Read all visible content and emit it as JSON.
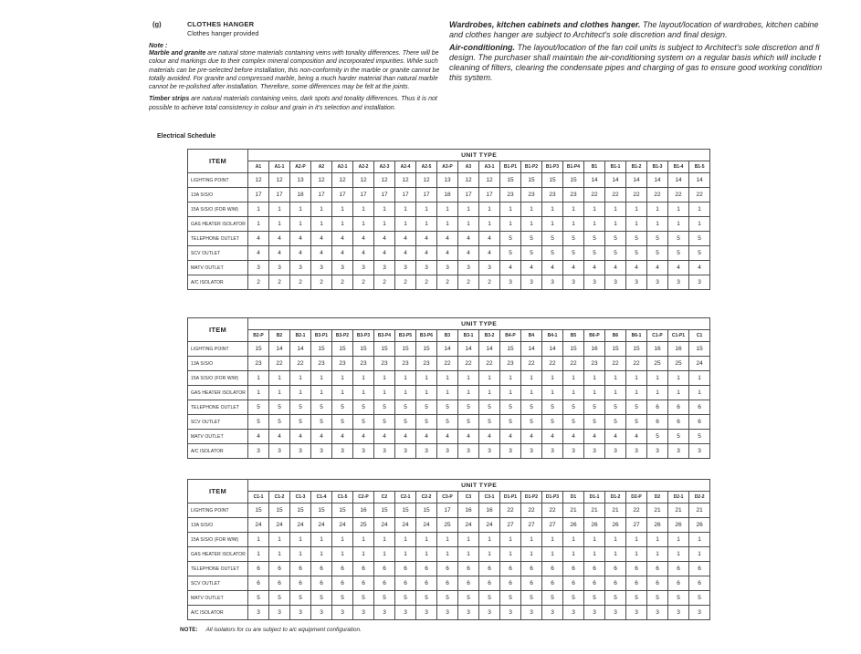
{
  "header": {
    "section_letter": "(g)",
    "section_title": "CLOTHES HANGER",
    "section_subtitle": "Clothes hanger provided",
    "note_label": "Note :"
  },
  "left_paragraphs": [
    {
      "lines": [
        [
          [
            "b",
            "Marble and granite"
          ],
          [
            "r",
            " are natural stone materials containing veins with tonality differences. There will be"
          ]
        ],
        [
          [
            "r",
            "colour and markings due to their complex mineral composition and incorporated impurities. While such"
          ]
        ],
        [
          [
            "r",
            "materials can be pre-selected before installation, this non-conformity in the marble or granite cannot be"
          ]
        ],
        [
          [
            "r",
            "totally avoided. For granite and compressed marble, being a much harder material than natural marble"
          ]
        ],
        [
          [
            "r",
            "cannot be re-polished after installation. Therefore, some differences may be felt at the joints."
          ]
        ]
      ]
    },
    {
      "lines": [
        [
          [
            "b",
            "Timber strips"
          ],
          [
            "r",
            " are natural materials containing veins, dark spots and tonality differences. Thus it is not"
          ]
        ],
        [
          [
            "r",
            "possible to achieve total consistency in colour and grain in it's selection and installation."
          ]
        ]
      ]
    }
  ],
  "right_paragraphs": [
    {
      "lines": [
        [
          [
            "b",
            "Wardrobes, kitchen cabinets and clothes hanger."
          ],
          [
            "r",
            " The layout/location of wardrobes, kitchen cabine"
          ]
        ],
        [
          [
            "r",
            "and clothes hanger are subject to Architect's sole discretion and final design."
          ]
        ]
      ]
    },
    {
      "lines": [
        [
          [
            "b",
            "Air-conditioning."
          ],
          [
            "r",
            " The layout/location of the fan coil units is subject to Architect's sole discretion and fi"
          ]
        ],
        [
          [
            "r",
            "design. The purchaser shall maintain the air-conditioning system on a regular basis which will include t"
          ]
        ],
        [
          [
            "r",
            "cleaning of filters, clearing the condensate pipes and charging of gas to ensure good working condition"
          ]
        ],
        [
          [
            "r",
            "this system."
          ]
        ]
      ]
    }
  ],
  "schedule_title": "Electrical Schedule",
  "tables": [
    {
      "item_header": "ITEM",
      "unit_type_header": "UNIT TYPE",
      "columns": [
        "A1",
        "A1-1",
        "A2-P",
        "A2",
        "A2-1",
        "A2-2",
        "A2-3",
        "A2-4",
        "A2-5",
        "A3-P",
        "A3",
        "A3-1",
        "B1-P1",
        "B1-P2",
        "B1-P3",
        "B1-P4",
        "B1",
        "B1-1",
        "B1-2",
        "B1-3",
        "B1-4",
        "B1-5"
      ],
      "rows": [
        {
          "label": "LIGHTING POINT",
          "values": [
            12,
            12,
            13,
            12,
            12,
            12,
            12,
            12,
            12,
            13,
            12,
            12,
            15,
            15,
            15,
            15,
            14,
            14,
            14,
            14,
            14,
            14
          ]
        },
        {
          "label": "13A S/S/O",
          "values": [
            17,
            17,
            18,
            17,
            17,
            17,
            17,
            17,
            17,
            18,
            17,
            17,
            23,
            23,
            23,
            23,
            22,
            22,
            22,
            22,
            22,
            22
          ]
        },
        {
          "label": "15A S/S/O (FOR W/M)",
          "values": [
            1,
            1,
            1,
            1,
            1,
            1,
            1,
            1,
            1,
            1,
            1,
            1,
            1,
            1,
            1,
            1,
            1,
            1,
            1,
            1,
            1,
            1
          ]
        },
        {
          "label": "GAS HEATER ISOLATOR",
          "values": [
            1,
            1,
            1,
            1,
            1,
            1,
            1,
            1,
            1,
            1,
            1,
            1,
            1,
            1,
            1,
            1,
            1,
            1,
            1,
            1,
            1,
            1
          ]
        },
        {
          "label": "TELEPHONE OUTLET",
          "values": [
            4,
            4,
            4,
            4,
            4,
            4,
            4,
            4,
            4,
            4,
            4,
            4,
            5,
            5,
            5,
            5,
            5,
            5,
            5,
            5,
            5,
            5
          ]
        },
        {
          "label": "SCV OUTLET",
          "values": [
            4,
            4,
            4,
            4,
            4,
            4,
            4,
            4,
            4,
            4,
            4,
            4,
            5,
            5,
            5,
            5,
            5,
            5,
            5,
            5,
            5,
            5
          ]
        },
        {
          "label": "MATV OUTLET",
          "values": [
            3,
            3,
            3,
            3,
            3,
            3,
            3,
            3,
            3,
            3,
            3,
            3,
            4,
            4,
            4,
            4,
            4,
            4,
            4,
            4,
            4,
            4
          ]
        },
        {
          "label": "A/C ISOLATOR",
          "values": [
            2,
            2,
            2,
            2,
            2,
            2,
            2,
            2,
            2,
            2,
            2,
            2,
            3,
            3,
            3,
            3,
            3,
            3,
            3,
            3,
            3,
            3
          ]
        }
      ]
    },
    {
      "item_header": "ITEM",
      "unit_type_header": "UNIT TYPE",
      "columns": [
        "B2-P",
        "B2",
        "B2-1",
        "B3-P1",
        "B3-P2",
        "B3-P3",
        "B3-P4",
        "B3-P5",
        "B3-P6",
        "B3",
        "B3-1",
        "B3-2",
        "B4-P",
        "B4",
        "B4-1",
        "B5",
        "B6-P",
        "B6",
        "B6-1",
        "C1-P",
        "C1-P1",
        "C1"
      ],
      "rows": [
        {
          "label": "LIGHTING POINT",
          "values": [
            15,
            14,
            14,
            15,
            15,
            15,
            15,
            15,
            15,
            14,
            14,
            14,
            15,
            14,
            14,
            15,
            16,
            15,
            15,
            16,
            16,
            15
          ]
        },
        {
          "label": "13A S/S/O",
          "values": [
            23,
            22,
            22,
            23,
            23,
            23,
            23,
            23,
            23,
            22,
            22,
            22,
            23,
            22,
            22,
            22,
            23,
            22,
            22,
            25,
            25,
            24
          ]
        },
        {
          "label": "15A S/S/O (FOR W/M)",
          "values": [
            1,
            1,
            1,
            1,
            1,
            1,
            1,
            1,
            1,
            1,
            1,
            1,
            1,
            1,
            1,
            1,
            1,
            1,
            1,
            1,
            1,
            1
          ]
        },
        {
          "label": "GAS HEATER ISOLATOR",
          "values": [
            1,
            1,
            1,
            1,
            1,
            1,
            1,
            1,
            1,
            1,
            1,
            1,
            1,
            1,
            1,
            1,
            1,
            1,
            1,
            1,
            1,
            1
          ]
        },
        {
          "label": "TELEPHONE OUTLET",
          "values": [
            5,
            5,
            5,
            5,
            5,
            5,
            5,
            5,
            5,
            5,
            5,
            5,
            5,
            5,
            5,
            5,
            5,
            5,
            5,
            6,
            6,
            6
          ]
        },
        {
          "label": "SCV OUTLET",
          "values": [
            5,
            5,
            5,
            5,
            5,
            5,
            5,
            5,
            5,
            5,
            5,
            5,
            5,
            5,
            5,
            5,
            5,
            5,
            5,
            6,
            6,
            6
          ]
        },
        {
          "label": "MATV OUTLET",
          "values": [
            4,
            4,
            4,
            4,
            4,
            4,
            4,
            4,
            4,
            4,
            4,
            4,
            4,
            4,
            4,
            4,
            4,
            4,
            4,
            5,
            5,
            5
          ]
        },
        {
          "label": "A/C ISOLATOR",
          "values": [
            3,
            3,
            3,
            3,
            3,
            3,
            3,
            3,
            3,
            3,
            3,
            3,
            3,
            3,
            3,
            3,
            3,
            3,
            3,
            3,
            3,
            3
          ]
        }
      ]
    },
    {
      "item_header": "ITEM",
      "unit_type_header": "UNIT TYPE",
      "columns": [
        "C1-1",
        "C1-2",
        "C1-3",
        "C1-4",
        "C1-5",
        "C2-P",
        "C2",
        "C2-1",
        "C2-2",
        "C3-P",
        "C3",
        "C3-1",
        "D1-P1",
        "D1-P2",
        "D1-P3",
        "D1",
        "D1-1",
        "D1-2",
        "D2-P",
        "D2",
        "D2-1",
        "D2-2"
      ],
      "rows": [
        {
          "label": "LIGHTING POINT",
          "values": [
            15,
            15,
            15,
            15,
            15,
            16,
            15,
            15,
            15,
            17,
            16,
            16,
            22,
            22,
            22,
            21,
            21,
            21,
            22,
            21,
            21,
            21
          ]
        },
        {
          "label": "13A S/S/O",
          "values": [
            24,
            24,
            24,
            24,
            24,
            25,
            24,
            24,
            24,
            25,
            24,
            24,
            27,
            27,
            27,
            26,
            26,
            26,
            27,
            26,
            26,
            26
          ]
        },
        {
          "label": "15A S/S/O (FOR W/M)",
          "values": [
            1,
            1,
            1,
            1,
            1,
            1,
            1,
            1,
            1,
            1,
            1,
            1,
            1,
            1,
            1,
            1,
            1,
            1,
            1,
            1,
            1,
            1
          ]
        },
        {
          "label": "GAS HEATER ISOLATOR",
          "values": [
            1,
            1,
            1,
            1,
            1,
            1,
            1,
            1,
            1,
            1,
            1,
            1,
            1,
            1,
            1,
            1,
            1,
            1,
            1,
            1,
            1,
            1
          ]
        },
        {
          "label": "TELEPHONE OUTLET",
          "values": [
            6,
            6,
            6,
            6,
            6,
            6,
            6,
            6,
            6,
            6,
            6,
            6,
            6,
            6,
            6,
            6,
            6,
            6,
            6,
            6,
            6,
            6
          ]
        },
        {
          "label": "SCV OUTLET",
          "values": [
            6,
            6,
            6,
            6,
            6,
            6,
            6,
            6,
            6,
            6,
            6,
            6,
            6,
            6,
            6,
            6,
            6,
            6,
            6,
            6,
            6,
            6
          ]
        },
        {
          "label": "MATV OUTLET",
          "values": [
            5,
            5,
            5,
            5,
            5,
            5,
            5,
            5,
            5,
            5,
            5,
            5,
            5,
            5,
            5,
            5,
            5,
            5,
            5,
            5,
            5,
            5
          ]
        },
        {
          "label": "A/C ISOLATOR",
          "values": [
            3,
            3,
            3,
            3,
            3,
            3,
            3,
            3,
            3,
            3,
            3,
            3,
            3,
            3,
            3,
            3,
            3,
            3,
            3,
            3,
            3,
            3
          ]
        }
      ]
    }
  ],
  "footer_note": {
    "label": "NOTE:",
    "text": "All isolators for cu are subject to a/c equipment configuration."
  }
}
